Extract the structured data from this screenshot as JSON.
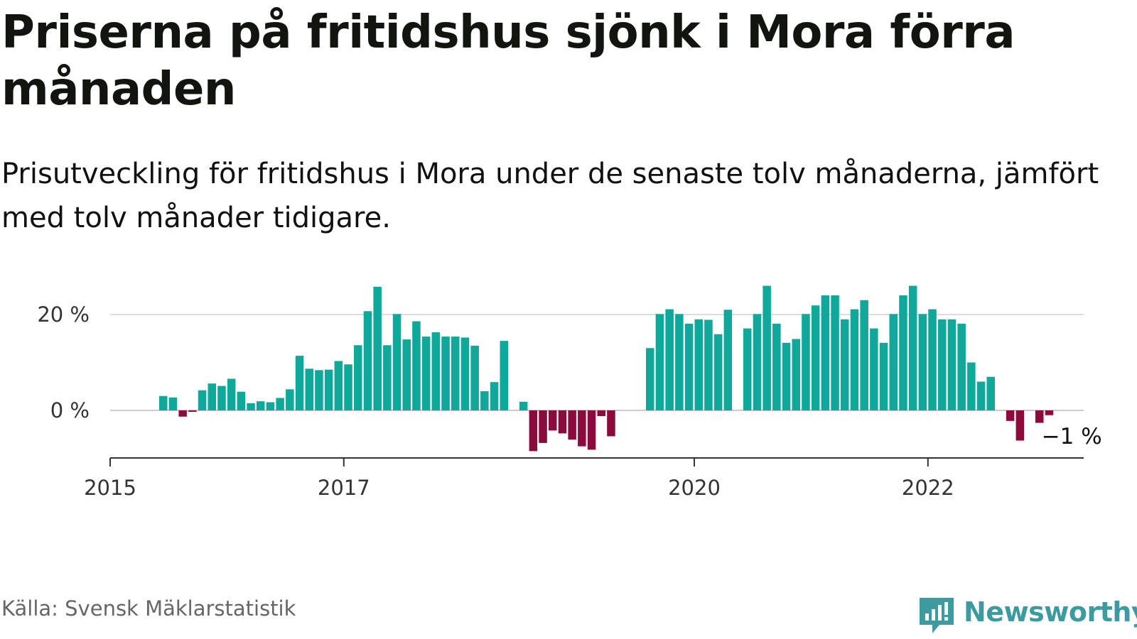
{
  "title": "Priserna på fritidshus sjönk i Mora förra månaden",
  "subtitle": "Prisutveckling för fritidshus i Mora under de senaste tolv månaderna, jämfört med tolv månader tidigare.",
  "source": "Källa: Svensk Mäklarstatistik",
  "brand": "Newsworthy",
  "colors": {
    "positive": "#0fa89b",
    "negative": "#8b0b3c",
    "grid": "#dddddd",
    "axis": "#333333",
    "brand": "#3d9aa0"
  },
  "chart_data": {
    "type": "bar",
    "ylim": [
      -10,
      30
    ],
    "y_ticks": [
      {
        "value": 0,
        "label": "0 %"
      },
      {
        "value": 20,
        "label": "20 %"
      }
    ],
    "x_ticks": [
      {
        "index": 0,
        "label": "2015"
      },
      {
        "index": 24,
        "label": "2017"
      },
      {
        "index": 60,
        "label": "2020"
      },
      {
        "index": 84,
        "label": "2022"
      }
    ],
    "grid": true,
    "start": "2015-01",
    "values": [
      null,
      null,
      null,
      null,
      null,
      3,
      2.7,
      -1.3,
      -0.3,
      4.2,
      5.6,
      5.1,
      6.6,
      3.9,
      1.5,
      1.9,
      1.7,
      2.6,
      4.4,
      11.4,
      8.7,
      8.4,
      8.5,
      10.3,
      9.6,
      13.6,
      20.7,
      25.8,
      13.6,
      20.1,
      14.8,
      18.6,
      15.4,
      16.3,
      15.4,
      15.4,
      15.2,
      13.5,
      4,
      5.9,
      14.5,
      null,
      1.8,
      -8.5,
      -6.8,
      -4.2,
      -4.8,
      -6.1,
      -7.5,
      -8.2,
      -1.2,
      -5.4,
      null,
      null,
      null,
      13,
      20.1,
      21.1,
      20.1,
      18.1,
      19,
      18.9,
      15.9,
      21,
      null,
      17.1,
      20.1,
      26,
      18.1,
      14.1,
      14.9,
      20.1,
      21.9,
      24,
      24,
      19,
      21.1,
      23,
      17.1,
      14.1,
      20.1,
      24,
      26,
      20.1,
      21.1,
      19,
      19,
      18.1,
      10,
      6,
      7,
      null,
      -2.2,
      -6.3,
      null,
      -2.6,
      -1
    ]
  },
  "annotation": {
    "label": "−1 %"
  }
}
